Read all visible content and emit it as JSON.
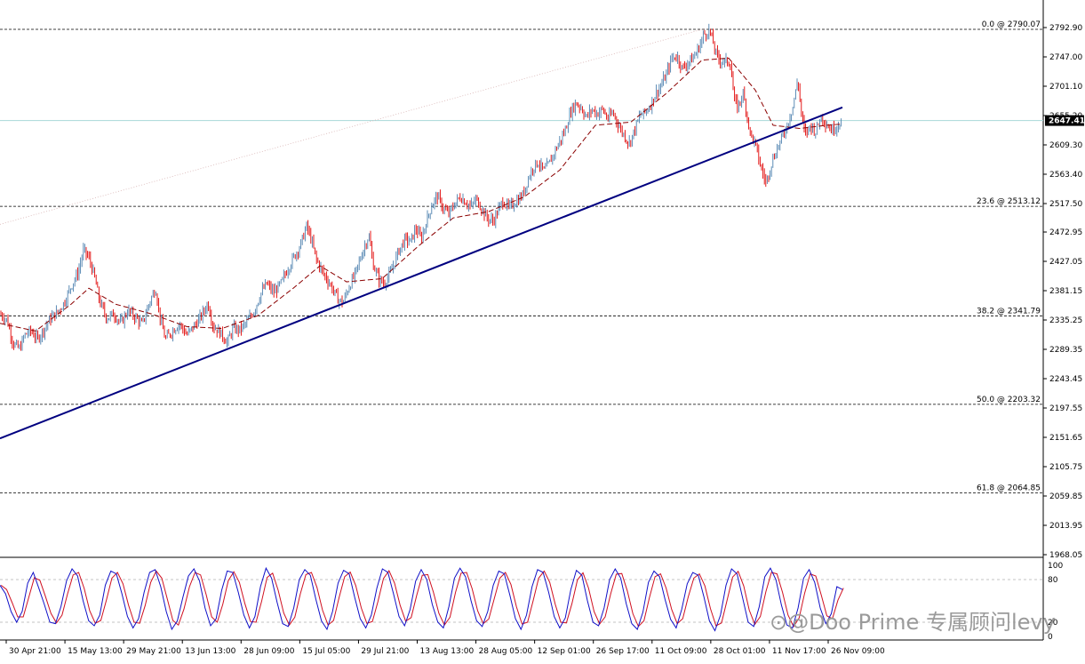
{
  "chart_data": {
    "type": "candlestick",
    "y_axis": {
      "ticks": [
        2792.9,
        2747.0,
        2701.1,
        2655.2,
        2609.3,
        2563.4,
        2517.5,
        2472.95,
        2427.05,
        2381.15,
        2335.25,
        2289.35,
        2243.45,
        2197.55,
        2151.65,
        2105.75,
        2059.85,
        2013.95,
        1968.05
      ],
      "tick_labels": [
        "2792.90",
        "2747.00",
        "2701.10",
        "2655.20",
        "2609.30",
        "2563.40",
        "2517.50",
        "2472.95",
        "2427.05",
        "2381.15",
        "2335.25",
        "2289.35",
        "2243.45",
        "2197.55",
        "2151.65",
        "2105.75",
        "2059.85",
        "2013.95",
        "1968.05"
      ],
      "ylim": [
        1963,
        2808
      ]
    },
    "current_price": {
      "value": 2647.41,
      "label": "2647.41",
      "color": "#000000"
    },
    "fibonacci_levels": [
      {
        "ratio": "0.0",
        "price": 2790.07,
        "label": "0.0 @ 2790.07"
      },
      {
        "ratio": "23.6",
        "price": 2513.12,
        "label": "23.6 @ 2513.12"
      },
      {
        "ratio": "38.2",
        "price": 2341.79,
        "label": "38.2 @ 2341.79"
      },
      {
        "ratio": "50.0",
        "price": 2203.32,
        "label": "50.0 @ 2203.32"
      },
      {
        "ratio": "61.8",
        "price": 2064.85,
        "label": "61.8 @ 2064.85"
      }
    ],
    "x_axis": {
      "labels": [
        "30 Apr 21:00",
        "15 May 13:00",
        "29 May 21:00",
        "13 Jun 13:00",
        "28 Jun 09:00",
        "15 Jul 05:00",
        "29 Jul 21:00",
        "13 Aug 13:00",
        "28 Aug 05:00",
        "12 Sep 01:00",
        "26 Sep 17:00",
        "11 Oct 09:00",
        "28 Oct 01:00",
        "11 Nov 17:00",
        "26 Nov 09:00"
      ]
    },
    "price_path": [
      [
        0,
        2345
      ],
      [
        8,
        2335
      ],
      [
        15,
        2298
      ],
      [
        22,
        2290
      ],
      [
        28,
        2312
      ],
      [
        35,
        2318
      ],
      [
        42,
        2305
      ],
      [
        50,
        2322
      ],
      [
        58,
        2340
      ],
      [
        65,
        2348
      ],
      [
        72,
        2362
      ],
      [
        80,
        2388
      ],
      [
        88,
        2410
      ],
      [
        94,
        2445
      ],
      [
        100,
        2432
      ],
      [
        106,
        2405
      ],
      [
        112,
        2365
      ],
      [
        120,
        2338
      ],
      [
        128,
        2345
      ],
      [
        136,
        2330
      ],
      [
        144,
        2350
      ],
      [
        152,
        2340
      ],
      [
        160,
        2328
      ],
      [
        168,
        2362
      ],
      [
        175,
        2385
      ],
      [
        180,
        2340
      ],
      [
        186,
        2305
      ],
      [
        194,
        2318
      ],
      [
        202,
        2330
      ],
      [
        210,
        2312
      ],
      [
        218,
        2325
      ],
      [
        226,
        2340
      ],
      [
        234,
        2362
      ],
      [
        240,
        2325
      ],
      [
        248,
        2315
      ],
      [
        256,
        2300
      ],
      [
        262,
        2322
      ],
      [
        270,
        2320
      ],
      [
        278,
        2332
      ],
      [
        286,
        2350
      ],
      [
        294,
        2378
      ],
      [
        300,
        2392
      ],
      [
        308,
        2378
      ],
      [
        316,
        2392
      ],
      [
        322,
        2410
      ],
      [
        330,
        2432
      ],
      [
        338,
        2452
      ],
      [
        345,
        2482
      ],
      [
        350,
        2462
      ],
      [
        356,
        2430
      ],
      [
        364,
        2408
      ],
      [
        372,
        2390
      ],
      [
        380,
        2368
      ],
      [
        386,
        2362
      ],
      [
        392,
        2385
      ],
      [
        400,
        2408
      ],
      [
        408,
        2442
      ],
      [
        415,
        2468
      ],
      [
        420,
        2422
      ],
      [
        426,
        2400
      ],
      [
        432,
        2392
      ],
      [
        440,
        2410
      ],
      [
        448,
        2442
      ],
      [
        456,
        2462
      ],
      [
        462,
        2458
      ],
      [
        468,
        2478
      ],
      [
        474,
        2462
      ],
      [
        480,
        2490
      ],
      [
        486,
        2515
      ],
      [
        492,
        2530
      ],
      [
        498,
        2512
      ],
      [
        505,
        2500
      ],
      [
        512,
        2518
      ],
      [
        518,
        2528
      ],
      [
        524,
        2520
      ],
      [
        530,
        2512
      ],
      [
        536,
        2525
      ],
      [
        542,
        2510
      ],
      [
        548,
        2495
      ],
      [
        555,
        2490
      ],
      [
        560,
        2505
      ],
      [
        566,
        2522
      ],
      [
        572,
        2510
      ],
      [
        580,
        2520
      ],
      [
        588,
        2530
      ],
      [
        594,
        2555
      ],
      [
        600,
        2575
      ],
      [
        606,
        2582
      ],
      [
        612,
        2568
      ],
      [
        618,
        2580
      ],
      [
        624,
        2598
      ],
      [
        630,
        2615
      ],
      [
        636,
        2632
      ],
      [
        642,
        2660
      ],
      [
        648,
        2675
      ],
      [
        654,
        2668
      ],
      [
        660,
        2652
      ],
      [
        666,
        2665
      ],
      [
        672,
        2658
      ],
      [
        678,
        2665
      ],
      [
        684,
        2650
      ],
      [
        690,
        2660
      ],
      [
        696,
        2640
      ],
      [
        702,
        2625
      ],
      [
        708,
        2612
      ],
      [
        714,
        2632
      ],
      [
        720,
        2655
      ],
      [
        726,
        2660
      ],
      [
        732,
        2672
      ],
      [
        738,
        2690
      ],
      [
        744,
        2702
      ],
      [
        750,
        2720
      ],
      [
        756,
        2745
      ],
      [
        762,
        2748
      ],
      [
        768,
        2728
      ],
      [
        774,
        2738
      ],
      [
        780,
        2745
      ],
      [
        786,
        2760
      ],
      [
        792,
        2782
      ],
      [
        798,
        2788
      ],
      [
        802,
        2772
      ],
      [
        806,
        2750
      ],
      [
        810,
        2742
      ],
      [
        816,
        2740
      ],
      [
        822,
        2738
      ],
      [
        826,
        2680
      ],
      [
        830,
        2668
      ],
      [
        836,
        2690
      ],
      [
        840,
        2662
      ],
      [
        844,
        2628
      ],
      [
        850,
        2610
      ],
      [
        856,
        2575
      ],
      [
        862,
        2550
      ],
      [
        868,
        2580
      ],
      [
        874,
        2602
      ],
      [
        880,
        2620
      ],
      [
        886,
        2642
      ],
      [
        892,
        2668
      ],
      [
        898,
        2712
      ],
      [
        902,
        2655
      ],
      [
        906,
        2625
      ],
      [
        912,
        2640
      ],
      [
        918,
        2630
      ],
      [
        924,
        2655
      ],
      [
        930,
        2642
      ],
      [
        936,
        2632
      ],
      [
        942,
        2640
      ],
      [
        948,
        2647.41
      ]
    ],
    "moving_average": [
      [
        0,
        2330
      ],
      [
        40,
        2318
      ],
      [
        80,
        2360
      ],
      [
        100,
        2385
      ],
      [
        130,
        2360
      ],
      [
        170,
        2345
      ],
      [
        210,
        2325
      ],
      [
        250,
        2322
      ],
      [
        290,
        2342
      ],
      [
        330,
        2385
      ],
      [
        360,
        2420
      ],
      [
        390,
        2395
      ],
      [
        430,
        2400
      ],
      [
        470,
        2450
      ],
      [
        510,
        2495
      ],
      [
        550,
        2505
      ],
      [
        590,
        2528
      ],
      [
        630,
        2570
      ],
      [
        670,
        2640
      ],
      [
        710,
        2645
      ],
      [
        750,
        2690
      ],
      [
        790,
        2742
      ],
      [
        820,
        2745
      ],
      [
        850,
        2695
      ],
      [
        870,
        2640
      ],
      [
        900,
        2635
      ],
      [
        930,
        2640
      ],
      [
        948,
        2642
      ]
    ],
    "trendline": {
      "from": [
        0,
        2150
      ],
      "to": [
        948,
        2668
      ]
    },
    "faint_trendline": {
      "from": [
        0,
        2485
      ],
      "to": [
        795,
        2792
      ]
    },
    "oscillator": {
      "levels": [
        {
          "value": 100,
          "label": "100"
        },
        {
          "value": 80,
          "label": "80"
        },
        {
          "value": 20,
          "label": "20"
        },
        {
          "value": 0,
          "label": "0"
        }
      ],
      "values": [
        72,
        60,
        35,
        20,
        35,
        75,
        90,
        68,
        45,
        20,
        18,
        42,
        78,
        95,
        85,
        50,
        22,
        15,
        30,
        72,
        92,
        88,
        60,
        28,
        12,
        25,
        62,
        90,
        94,
        70,
        35,
        10,
        22,
        55,
        85,
        95,
        78,
        40,
        15,
        25,
        65,
        92,
        90,
        62,
        30,
        12,
        28,
        70,
        96,
        82,
        48,
        18,
        14,
        40,
        80,
        94,
        86,
        52,
        22,
        10,
        35,
        75,
        93,
        88,
        55,
        25,
        12,
        30,
        68,
        95,
        90,
        60,
        28,
        15,
        38,
        78,
        94,
        80,
        45,
        20,
        12,
        42,
        82,
        96,
        84,
        50,
        22,
        14,
        35,
        72,
        92,
        88,
        58,
        25,
        10,
        30,
        70,
        94,
        90,
        62,
        28,
        12,
        26,
        66,
        93,
        86,
        50,
        20,
        15,
        40,
        80,
        95,
        82,
        46,
        18,
        10,
        34,
        76,
        92,
        84,
        52,
        24,
        12,
        38,
        74,
        90,
        86,
        56,
        22,
        8,
        30,
        72,
        95,
        88,
        54,
        20,
        14,
        42,
        84,
        96,
        80,
        44,
        16,
        12,
        40,
        82,
        94,
        76,
        40,
        18,
        32,
        70,
        66
      ],
      "colors": {
        "main": "#1010c8",
        "signal": "#d01020"
      }
    },
    "colors": {
      "bull": "#4a7fae",
      "bear": "#e00000",
      "trendline": "#000080",
      "ma": "#8b0000",
      "fib": "#000000",
      "current_line": "#a8d8d8"
    }
  },
  "watermark": "⊙@Doo Prime 专属顾问levy"
}
